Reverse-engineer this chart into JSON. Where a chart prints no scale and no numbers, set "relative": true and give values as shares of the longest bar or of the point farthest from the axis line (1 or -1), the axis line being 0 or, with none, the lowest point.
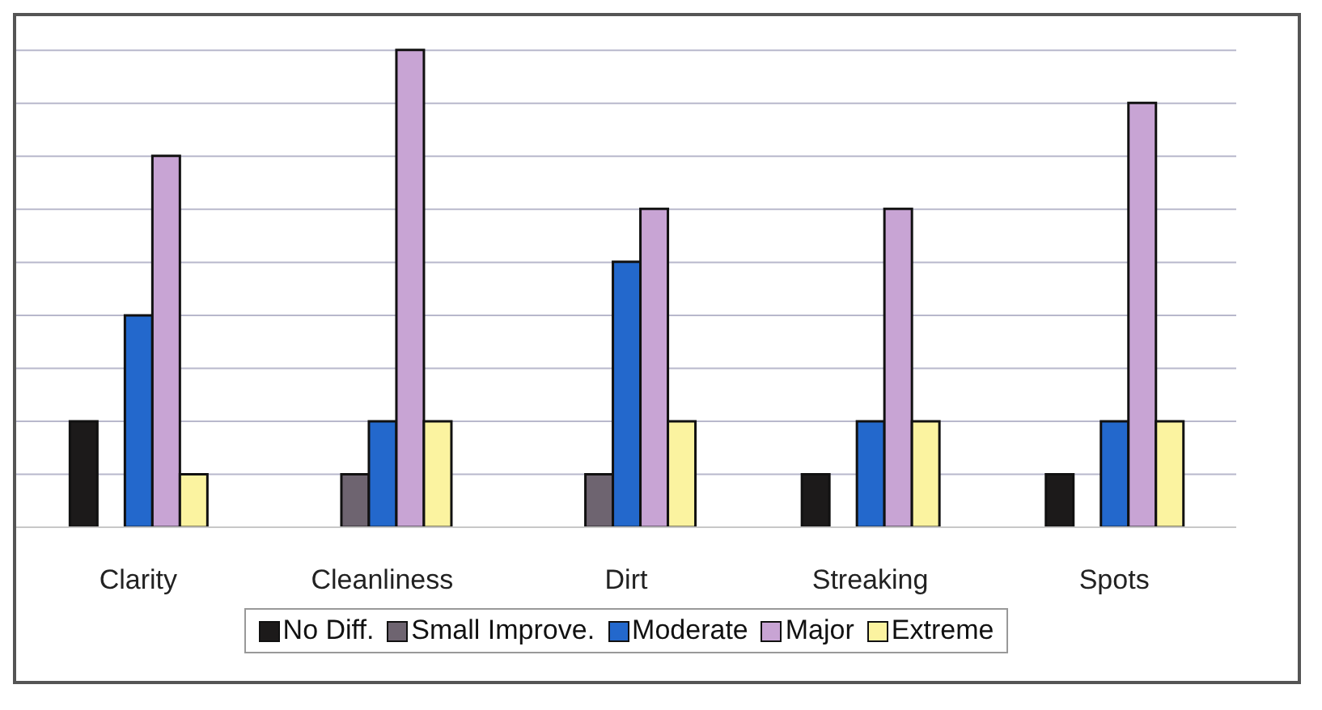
{
  "chart_data": {
    "type": "bar",
    "relative": true,
    "categories": [
      "Clarity",
      "Cleanliness",
      "Dirt",
      "Streaking",
      "Spots"
    ],
    "series": [
      {
        "name": "No Diff.",
        "color": "#1c1a1a",
        "values": [
          0.222,
          0,
          0,
          0.111,
          0.111
        ]
      },
      {
        "name": "Small Improve.",
        "color": "#6e6470",
        "values": [
          0,
          0.111,
          0.111,
          0,
          0
        ]
      },
      {
        "name": "Moderate",
        "color": "#2368cc",
        "values": [
          0.444,
          0.222,
          0.556,
          0.222,
          0.222
        ]
      },
      {
        "name": "Major",
        "color": "#c8a4d4",
        "values": [
          0.778,
          1,
          0.667,
          0.667,
          0.889
        ]
      },
      {
        "name": "Extreme",
        "color": "#fbf3a0",
        "values": [
          0.111,
          0.222,
          0.222,
          0.222,
          0.222
        ]
      }
    ],
    "grid": "y",
    "legend": "bottom"
  }
}
